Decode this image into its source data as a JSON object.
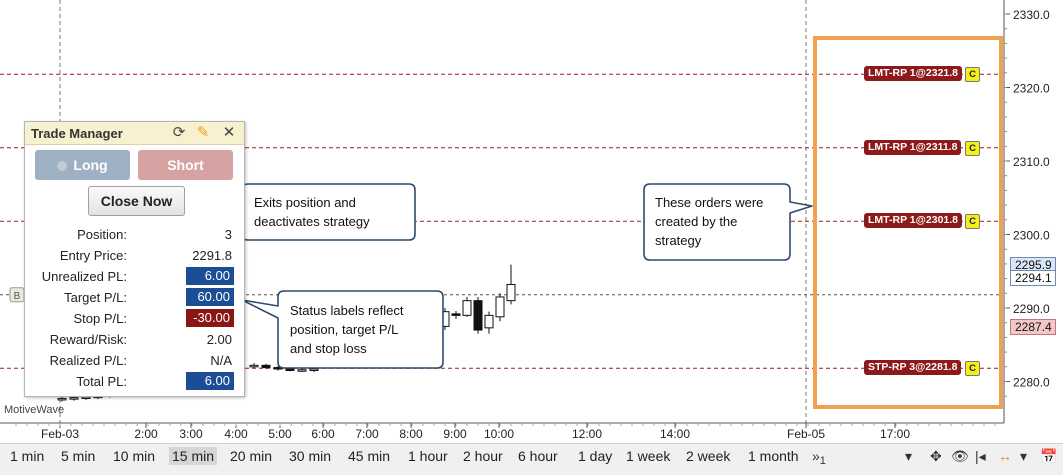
{
  "chart_data": {
    "type": "candlestick",
    "price_axis_ticks": [
      "2330.0",
      "2320.0",
      "2310.0",
      "2300.0",
      "2290.0",
      "2280.0"
    ],
    "time_axis_ticks": [
      "Feb-03",
      "2:00",
      "3:00",
      "4:00",
      "5:00",
      "6:00",
      "7:00",
      "8:00",
      "9:00",
      "10:00",
      "12:00",
      "14:00",
      "Feb-05",
      "17:00"
    ],
    "price_labels": [
      {
        "value": "2295.9",
        "color": "#d9e6f7"
      },
      {
        "value": "2294.1",
        "color": "#ffffff"
      },
      {
        "value": "2287.4",
        "color": "#f3c7c7"
      }
    ],
    "orders": [
      {
        "label": "LMT-RP 1@2321.8",
        "price": 2321.8,
        "badge": "C"
      },
      {
        "label": "LMT-RP 1@2311.8",
        "price": 2311.8,
        "badge": "C"
      },
      {
        "label": "LMT-RP 1@2301.8",
        "price": 2301.8,
        "badge": "C"
      },
      {
        "label": "STP-RP 3@2281.8",
        "price": 2281.8,
        "badge": "C"
      }
    ],
    "entry_marker": "B",
    "watermark": "MotiveWave"
  },
  "trade_manager": {
    "title": "Trade Manager",
    "long_label": "Long",
    "short_label": "Short",
    "close_label": "Close Now",
    "rows": [
      {
        "label": "Position:",
        "value": "3",
        "style": "plain"
      },
      {
        "label": "Entry Price:",
        "value": "2291.8",
        "style": "plain"
      },
      {
        "label": "Unrealized PL:",
        "value": "6.00",
        "style": "blue"
      },
      {
        "label": "Target P/L:",
        "value": "60.00",
        "style": "blue"
      },
      {
        "label": "Stop P/L:",
        "value": "-30.00",
        "style": "red"
      },
      {
        "label": "Reward/Risk:",
        "value": "2.00",
        "style": "plain"
      },
      {
        "label": "Realized P/L:",
        "value": "N/A",
        "style": "plain"
      },
      {
        "label": "Total PL:",
        "value": "6.00",
        "style": "blue"
      }
    ]
  },
  "callouts": {
    "close": [
      "Exits position and",
      "deactivates strategy"
    ],
    "status": [
      "Status labels reflect",
      "position, target P/L",
      "and stop loss"
    ],
    "orders": [
      "These orders were",
      "created by the",
      "strategy"
    ]
  },
  "timeframes": [
    "1 min",
    "5 min",
    "10 min",
    "15 min",
    "20 min",
    "30 min",
    "45 min",
    "1 hour",
    "2 hour",
    "6 hour",
    "1 day",
    "1 week",
    "2 week",
    "1 month"
  ],
  "selected_timeframe": "15 min",
  "more_label": "1",
  "colors": {
    "accent_box": "#f0a14f",
    "order_line": "#9c1b1b",
    "up_candle": "#ffffff",
    "down_candle": "#111111"
  }
}
